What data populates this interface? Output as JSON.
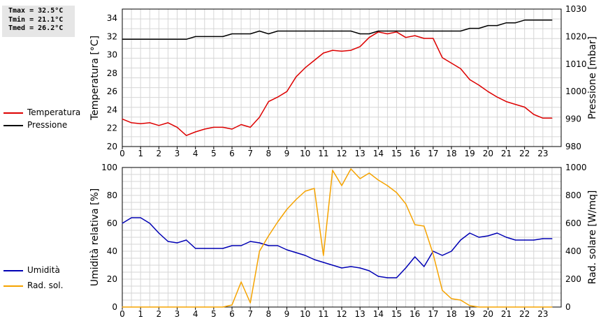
{
  "stats": [
    "Tmax = 32.5°C",
    "Tmin = 21.1°C",
    "Tmed = 26.2°C"
  ],
  "colors": {
    "temperatura": "#dd0000",
    "pressione": "#000000",
    "umidita": "#0000b4",
    "radiazione": "#f5a300",
    "grid": "#d6d6d6"
  },
  "legend_top": [
    {
      "label": "Temperatura",
      "color": "#dd0000"
    },
    {
      "label": "Pressione",
      "color": "#000000"
    }
  ],
  "legend_bottom": [
    {
      "label": "Umidità",
      "color": "#0000b4"
    },
    {
      "label": "Rad. sol.",
      "color": "#f5a300"
    }
  ],
  "chart_data": [
    {
      "type": "line",
      "x_ticks": [
        "0",
        "1",
        "2",
        "3",
        "4",
        "5",
        "6",
        "7",
        "8",
        "9",
        "10",
        "11",
        "12",
        "13",
        "14",
        "15",
        "16",
        "17",
        "18",
        "19",
        "20",
        "21",
        "22",
        "23"
      ],
      "xlim": [
        0,
        24
      ],
      "grid": true,
      "ylabel": "Temperatura [°C]",
      "ylim": [
        20,
        35
      ],
      "y_ticks": [
        "20",
        "22",
        "24",
        "26",
        "28",
        "30",
        "32",
        "34"
      ],
      "ylabel_right": "Pressione [mbar]",
      "ylim_right": [
        980,
        1030
      ],
      "y_ticks_right": [
        "980",
        "990",
        "1000",
        "1010",
        "1020",
        "1030"
      ],
      "series": [
        {
          "name": "Temperatura",
          "axis": "left",
          "x": [
            0,
            0.5,
            1,
            1.5,
            2,
            2.5,
            3,
            3.5,
            4,
            4.5,
            5,
            5.5,
            6,
            6.5,
            7,
            7.5,
            8,
            8.5,
            9,
            9.5,
            10,
            10.5,
            11,
            11.5,
            12,
            12.5,
            13,
            13.5,
            14,
            14.5,
            15,
            15.5,
            16,
            16.5,
            17,
            17.5,
            18,
            18.5,
            19,
            19.5,
            20,
            20.5,
            21,
            21.5,
            22,
            22.5,
            23,
            23.5
          ],
          "values": [
            23.0,
            22.6,
            22.5,
            22.6,
            22.3,
            22.6,
            22.1,
            21.2,
            21.6,
            21.9,
            22.1,
            22.1,
            21.9,
            22.4,
            22.1,
            23.2,
            24.9,
            25.4,
            26.0,
            27.6,
            28.6,
            29.4,
            30.2,
            30.5,
            30.4,
            30.5,
            30.9,
            31.9,
            32.5,
            32.3,
            32.5,
            31.9,
            32.1,
            31.8,
            31.8,
            29.7,
            29.1,
            28.5,
            27.3,
            26.7,
            26.0,
            25.4,
            24.9,
            24.6,
            24.3,
            23.5,
            23.1,
            23.1
          ]
        },
        {
          "name": "Pressione",
          "axis": "right",
          "x": [
            0,
            0.5,
            1,
            1.5,
            2,
            2.5,
            3,
            3.5,
            4,
            4.5,
            5,
            5.5,
            6,
            6.5,
            7,
            7.5,
            8,
            8.5,
            9,
            9.5,
            10,
            10.5,
            11,
            11.5,
            12,
            12.5,
            13,
            13.5,
            14,
            14.5,
            15,
            15.5,
            16,
            16.5,
            17,
            17.5,
            18,
            18.5,
            19,
            19.5,
            20,
            20.5,
            21,
            21.5,
            22,
            22.5,
            23,
            23.5
          ],
          "values": [
            1019,
            1019,
            1019,
            1019,
            1019,
            1019,
            1019,
            1019,
            1020,
            1020,
            1020,
            1020,
            1021,
            1021,
            1021,
            1022,
            1021,
            1022,
            1022,
            1022,
            1022,
            1022,
            1022,
            1022,
            1022,
            1022,
            1021,
            1021,
            1022,
            1022,
            1022,
            1022,
            1022,
            1022,
            1022,
            1022,
            1022,
            1022,
            1023,
            1023,
            1024,
            1024,
            1025,
            1025,
            1026,
            1026,
            1026,
            1026
          ]
        }
      ]
    },
    {
      "type": "line",
      "x_ticks": [
        "0",
        "1",
        "2",
        "3",
        "4",
        "5",
        "6",
        "7",
        "8",
        "9",
        "10",
        "11",
        "12",
        "13",
        "14",
        "15",
        "16",
        "17",
        "18",
        "19",
        "20",
        "21",
        "22",
        "23"
      ],
      "xlim": [
        0,
        24
      ],
      "grid": true,
      "ylabel": "Umidità relativa [%]",
      "ylim": [
        0,
        100
      ],
      "y_ticks": [
        "0",
        "20",
        "40",
        "60",
        "80",
        "100"
      ],
      "ylabel_right": "Rad. solare [W/mq]",
      "ylim_right": [
        0,
        1000
      ],
      "y_ticks_right": [
        "0",
        "200",
        "400",
        "600",
        "800",
        "1000"
      ],
      "series": [
        {
          "name": "Umidità",
          "axis": "left",
          "x": [
            0,
            0.5,
            1,
            1.5,
            2,
            2.5,
            3,
            3.5,
            4,
            4.5,
            5,
            5.5,
            6,
            6.5,
            7,
            7.5,
            8,
            8.5,
            9,
            9.5,
            10,
            10.5,
            11,
            11.5,
            12,
            12.5,
            13,
            13.5,
            14,
            14.5,
            15,
            15.5,
            16,
            16.5,
            17,
            17.5,
            18,
            18.5,
            19,
            19.5,
            20,
            20.5,
            21,
            21.5,
            22,
            22.5,
            23,
            23.5
          ],
          "values": [
            60,
            64,
            64,
            60,
            53,
            47,
            46,
            48,
            42,
            42,
            42,
            42,
            44,
            44,
            47,
            46,
            44,
            44,
            41,
            39,
            37,
            34,
            32,
            30,
            28,
            29,
            28,
            26,
            22,
            21,
            21,
            28,
            36,
            29,
            40,
            37,
            40,
            48,
            53,
            50,
            51,
            53,
            50,
            48,
            48,
            48,
            49,
            49
          ]
        },
        {
          "name": "Rad. sol.",
          "axis": "right",
          "x": [
            0,
            0.5,
            1,
            1.5,
            2,
            2.5,
            3,
            3.5,
            4,
            4.5,
            5,
            5.5,
            6,
            6.5,
            7,
            7.5,
            8,
            8.5,
            9,
            9.5,
            10,
            10.5,
            11,
            11.5,
            12,
            12.5,
            13,
            13.5,
            14,
            14.5,
            15,
            15.5,
            16,
            16.5,
            17,
            17.5,
            18,
            18.5,
            19,
            19.5,
            20,
            20.5,
            21,
            21.5,
            22,
            22.5,
            23,
            23.5
          ],
          "values": [
            0,
            0,
            0,
            0,
            0,
            0,
            0,
            0,
            0,
            0,
            0,
            0,
            15,
            180,
            30,
            400,
            510,
            610,
            700,
            770,
            830,
            850,
            370,
            980,
            870,
            990,
            920,
            960,
            910,
            870,
            820,
            740,
            590,
            580,
            380,
            120,
            60,
            50,
            10,
            0,
            0,
            0,
            0,
            0,
            0,
            0,
            0,
            0
          ]
        }
      ]
    }
  ]
}
